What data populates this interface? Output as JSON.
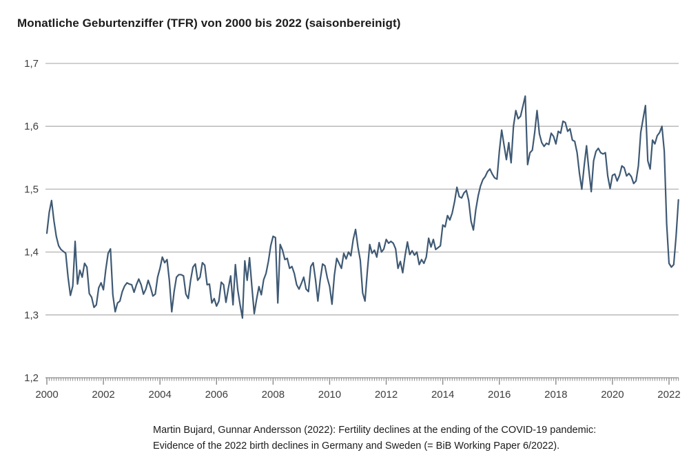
{
  "title": "Monatliche Geburtenziffer (TFR) von 2000 bis 2022 (saisonbereinigt)",
  "source": {
    "line1": "Martin Bujard, Gunnar Andersson (2022): Fertility declines at the ending of the COVID-19 pandemic:",
    "line2": "Evidence of the 2022 birth declines in Germany and Sweden (= BiB Working Paper 6/2022)."
  },
  "colors": {
    "line": "#3e5974",
    "grid": "#b3b3b3",
    "axis": "#8a8a8a",
    "tick_text": "#3d3d3d",
    "title_text": "#1a1a1a"
  },
  "chart_data": {
    "type": "line",
    "title": "Monatliche Geburtenziffer (TFR) von 2000 bis 2022 (saisonbereinigt)",
    "xlabel": "",
    "ylabel": "",
    "ylim": [
      1.2,
      1.7
    ],
    "grid": "horizontal",
    "legend": "none",
    "x_start_year": 2000,
    "frequency": "monthly",
    "x_ticks_major_years": [
      2000,
      2002,
      2004,
      2006,
      2008,
      2010,
      2012,
      2014,
      2016,
      2018,
      2020,
      2022
    ],
    "x_ticks_minor": "monthly",
    "y_ticks": [
      {
        "value": 1.7,
        "label": "1,7"
      },
      {
        "value": 1.6,
        "label": "1,6"
      },
      {
        "value": 1.5,
        "label": "1,5"
      },
      {
        "value": 1.4,
        "label": "1,4"
      },
      {
        "value": 1.3,
        "label": "1,3"
      },
      {
        "value": 1.2,
        "label": "1,2"
      }
    ],
    "series": [
      {
        "name": "TFR (saisonbereinigt)",
        "start": "2000-01",
        "end": "2022-05",
        "values": [
          1.43,
          1.463,
          1.482,
          1.45,
          1.425,
          1.41,
          1.404,
          1.401,
          1.398,
          1.36,
          1.331,
          1.346,
          1.417,
          1.349,
          1.371,
          1.36,
          1.382,
          1.376,
          1.334,
          1.328,
          1.312,
          1.316,
          1.343,
          1.351,
          1.34,
          1.372,
          1.398,
          1.405,
          1.332,
          1.305,
          1.319,
          1.322,
          1.337,
          1.346,
          1.351,
          1.349,
          1.348,
          1.336,
          1.348,
          1.357,
          1.348,
          1.333,
          1.341,
          1.355,
          1.344,
          1.33,
          1.333,
          1.36,
          1.374,
          1.392,
          1.383,
          1.388,
          1.354,
          1.305,
          1.337,
          1.36,
          1.364,
          1.364,
          1.362,
          1.333,
          1.326,
          1.355,
          1.376,
          1.381,
          1.355,
          1.36,
          1.383,
          1.379,
          1.348,
          1.349,
          1.319,
          1.326,
          1.314,
          1.322,
          1.352,
          1.348,
          1.32,
          1.342,
          1.362,
          1.316,
          1.38,
          1.34,
          1.316,
          1.295,
          1.386,
          1.355,
          1.391,
          1.345,
          1.302,
          1.325,
          1.345,
          1.332,
          1.356,
          1.366,
          1.385,
          1.41,
          1.425,
          1.423,
          1.319,
          1.412,
          1.403,
          1.388,
          1.39,
          1.374,
          1.377,
          1.366,
          1.348,
          1.341,
          1.35,
          1.36,
          1.341,
          1.337,
          1.377,
          1.383,
          1.356,
          1.322,
          1.356,
          1.381,
          1.378,
          1.359,
          1.345,
          1.317,
          1.363,
          1.39,
          1.382,
          1.374,
          1.398,
          1.389,
          1.4,
          1.394,
          1.42,
          1.436,
          1.408,
          1.387,
          1.335,
          1.322,
          1.37,
          1.412,
          1.398,
          1.403,
          1.392,
          1.415,
          1.4,
          1.405,
          1.42,
          1.414,
          1.417,
          1.414,
          1.405,
          1.374,
          1.385,
          1.367,
          1.394,
          1.416,
          1.396,
          1.402,
          1.395,
          1.4,
          1.38,
          1.388,
          1.382,
          1.392,
          1.422,
          1.408,
          1.42,
          1.404,
          1.407,
          1.41,
          1.443,
          1.44,
          1.458,
          1.451,
          1.462,
          1.48,
          1.503,
          1.488,
          1.486,
          1.494,
          1.498,
          1.482,
          1.449,
          1.435,
          1.467,
          1.489,
          1.505,
          1.515,
          1.52,
          1.528,
          1.532,
          1.524,
          1.518,
          1.516,
          1.56,
          1.594,
          1.57,
          1.547,
          1.574,
          1.542,
          1.6,
          1.625,
          1.612,
          1.616,
          1.632,
          1.648,
          1.539,
          1.558,
          1.562,
          1.59,
          1.625,
          1.588,
          1.574,
          1.568,
          1.573,
          1.571,
          1.589,
          1.584,
          1.572,
          1.592,
          1.589,
          1.608,
          1.606,
          1.592,
          1.596,
          1.578,
          1.576,
          1.558,
          1.525,
          1.5,
          1.537,
          1.569,
          1.53,
          1.496,
          1.545,
          1.56,
          1.565,
          1.558,
          1.556,
          1.558,
          1.521,
          1.501,
          1.522,
          1.524,
          1.513,
          1.522,
          1.537,
          1.534,
          1.521,
          1.525,
          1.52,
          1.509,
          1.513,
          1.537,
          1.59,
          1.612,
          1.633,
          1.545,
          1.532,
          1.578,
          1.572,
          1.585,
          1.59,
          1.6,
          1.56,
          1.445,
          1.382,
          1.376,
          1.38,
          1.425,
          1.483
        ]
      }
    ]
  }
}
